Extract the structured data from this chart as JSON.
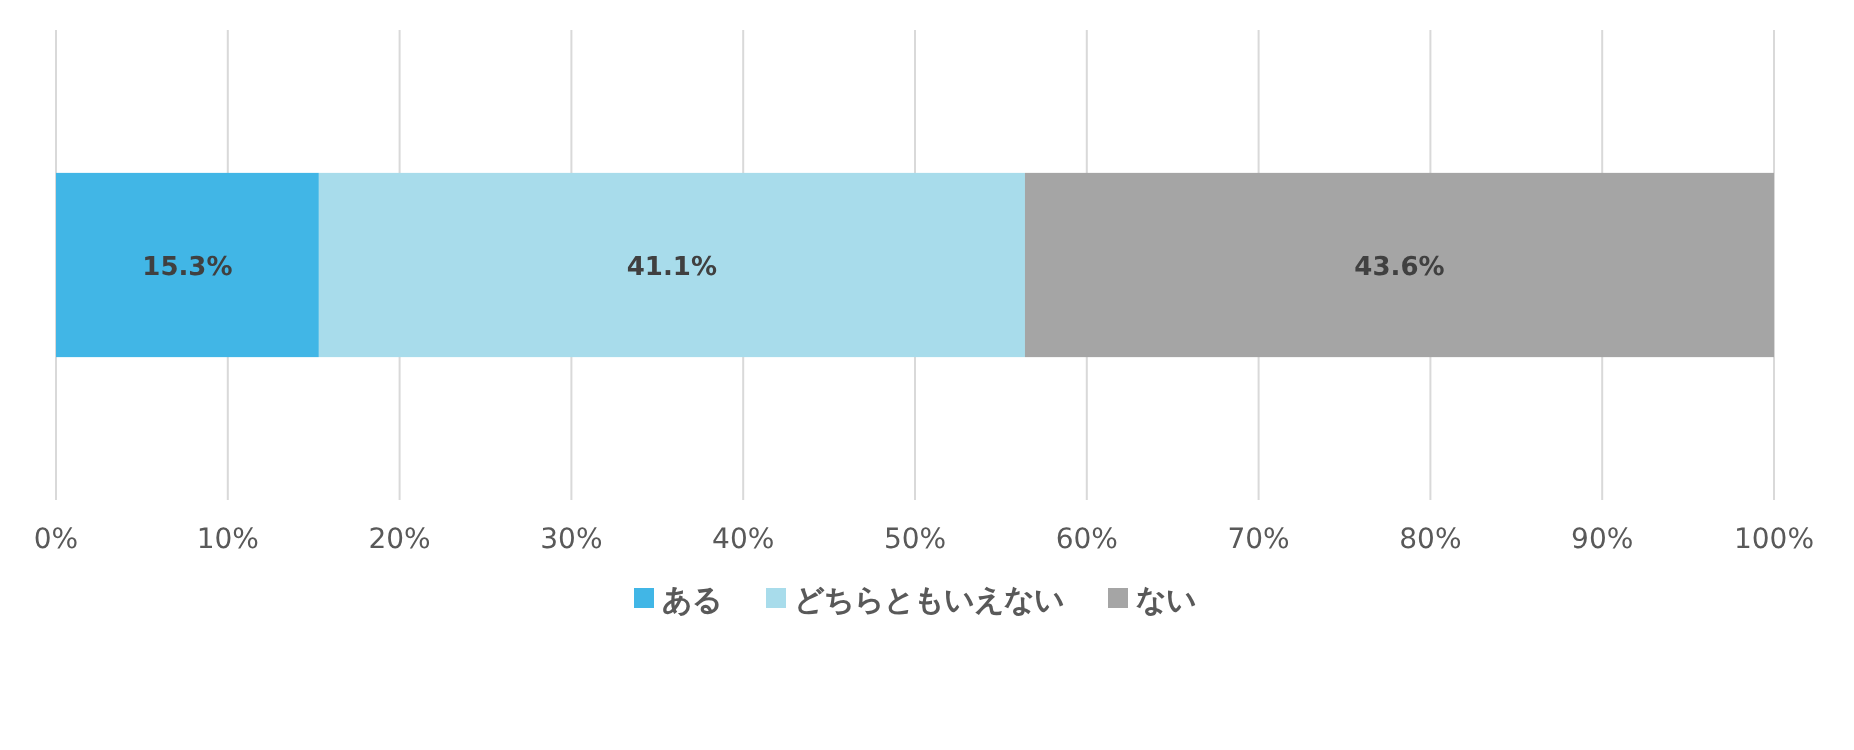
{
  "chart_data": {
    "type": "bar",
    "orientation": "horizontal",
    "stacked": true,
    "categories": [
      null
    ],
    "series": [
      {
        "name": "ある",
        "color": "#41b6e6",
        "values": [
          15.3
        ],
        "value_labels": [
          "15.3%"
        ]
      },
      {
        "name": "どちらともいえない",
        "color": "#a8dceb",
        "values": [
          41.1
        ],
        "value_labels": [
          "41.1%"
        ]
      },
      {
        "name": "ない",
        "color": "#a5a5a5",
        "values": [
          43.6
        ],
        "value_labels": [
          "43.6%"
        ]
      }
    ],
    "xlim": [
      0,
      100
    ],
    "xticks": [
      {
        "value": 0,
        "label": "0%"
      },
      {
        "value": 10,
        "label": "10%"
      },
      {
        "value": 20,
        "label": "20%"
      },
      {
        "value": 30,
        "label": "30%"
      },
      {
        "value": 40,
        "label": "40%"
      },
      {
        "value": 50,
        "label": "50%"
      },
      {
        "value": 60,
        "label": "60%"
      },
      {
        "value": 70,
        "label": "70%"
      },
      {
        "value": 80,
        "label": "80%"
      },
      {
        "value": 90,
        "label": "90%"
      },
      {
        "value": 100,
        "label": "100%"
      }
    ],
    "grid": "x",
    "legend": "bottom"
  }
}
